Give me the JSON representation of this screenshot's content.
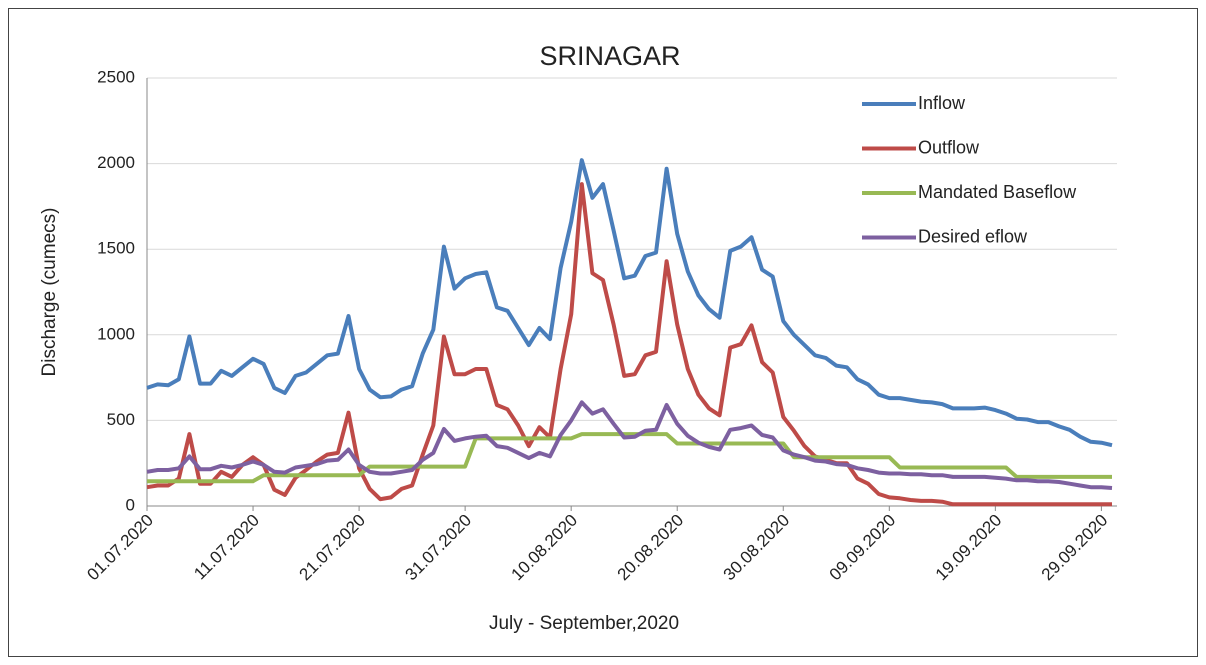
{
  "chart_data": {
    "type": "line",
    "title": "SRINAGAR",
    "x_label": "July - September,2020",
    "y_label": "Discharge (cumecs)",
    "categories": [
      "01.07.2020",
      null,
      null,
      null,
      null,
      null,
      null,
      null,
      null,
      null,
      "11.07.2020",
      null,
      null,
      null,
      null,
      null,
      null,
      null,
      null,
      null,
      "21.07.2020",
      null,
      null,
      null,
      null,
      null,
      null,
      null,
      null,
      null,
      "31.07.2020",
      null,
      null,
      null,
      null,
      null,
      null,
      null,
      null,
      null,
      "10.08.2020",
      null,
      null,
      null,
      null,
      null,
      null,
      null,
      null,
      null,
      "20.08.2020",
      null,
      null,
      null,
      null,
      null,
      null,
      null,
      null,
      null,
      "30.08.2020",
      null,
      null,
      null,
      null,
      null,
      null,
      null,
      null,
      null,
      "09.09.2020",
      null,
      null,
      null,
      null,
      null,
      null,
      null,
      null,
      null,
      "19.09.2020",
      null,
      null,
      null,
      null,
      null,
      null,
      null,
      null,
      null,
      "29.09.2020",
      null
    ],
    "series": [
      {
        "name": "Inflow",
        "color": "#4a7ebb",
        "values": [
          690,
          710,
          705,
          740,
          990,
          715,
          715,
          790,
          760,
          810,
          860,
          830,
          690,
          660,
          760,
          780,
          830,
          880,
          890,
          1110,
          800,
          680,
          635,
          640,
          680,
          700,
          890,
          1030,
          1515,
          1270,
          1330,
          1355,
          1365,
          1160,
          1140,
          1040,
          940,
          1040,
          975,
          1390,
          1660,
          2020,
          1800,
          1880,
          1610,
          1330,
          1345,
          1460,
          1480,
          1970,
          1590,
          1370,
          1230,
          1150,
          1100,
          1490,
          1515,
          1570,
          1380,
          1340,
          1080,
          1000,
          940,
          880,
          865,
          820,
          810,
          740,
          710,
          650,
          630,
          630,
          620,
          610,
          605,
          595,
          570,
          570,
          570,
          575,
          560,
          540,
          510,
          505,
          490,
          490,
          465,
          445,
          405,
          375,
          370,
          355
        ]
      },
      {
        "name": "Outflow",
        "color": "#be4b48",
        "values": [
          110,
          120,
          120,
          160,
          420,
          130,
          130,
          200,
          170,
          240,
          285,
          240,
          95,
          65,
          165,
          210,
          260,
          300,
          310,
          545,
          220,
          100,
          40,
          50,
          100,
          120,
          300,
          470,
          990,
          770,
          770,
          800,
          800,
          590,
          565,
          470,
          350,
          460,
          400,
          800,
          1120,
          1880,
          1360,
          1320,
          1060,
          760,
          770,
          880,
          900,
          1430,
          1060,
          800,
          650,
          570,
          530,
          925,
          945,
          1055,
          840,
          780,
          520,
          440,
          350,
          290,
          270,
          250,
          250,
          160,
          130,
          70,
          50,
          45,
          35,
          30,
          30,
          25,
          10,
          10,
          10,
          10,
          10,
          10,
          10,
          10,
          10,
          10,
          10,
          10,
          10,
          10,
          10,
          10
        ]
      },
      {
        "name": "Mandated Baseflow",
        "color": "#98b954",
        "values": [
          145,
          145,
          145,
          145,
          145,
          145,
          145,
          145,
          145,
          145,
          145,
          180,
          180,
          180,
          180,
          180,
          180,
          180,
          180,
          180,
          180,
          230,
          230,
          230,
          230,
          230,
          230,
          230,
          230,
          230,
          230,
          395,
          395,
          395,
          395,
          395,
          395,
          395,
          395,
          395,
          395,
          420,
          420,
          420,
          420,
          420,
          420,
          420,
          420,
          420,
          365,
          365,
          365,
          365,
          365,
          365,
          365,
          365,
          365,
          365,
          365,
          285,
          285,
          285,
          285,
          285,
          285,
          285,
          285,
          285,
          285,
          225,
          225,
          225,
          225,
          225,
          225,
          225,
          225,
          225,
          225,
          225,
          170,
          170,
          170,
          170,
          170,
          170,
          170,
          170,
          170,
          170
        ]
      },
      {
        "name": "Desired eflow",
        "color": "#7d60a0",
        "values": [
          200,
          210,
          210,
          220,
          290,
          215,
          215,
          235,
          225,
          240,
          260,
          240,
          200,
          195,
          225,
          235,
          245,
          265,
          270,
          330,
          240,
          200,
          190,
          190,
          200,
          210,
          270,
          310,
          450,
          380,
          395,
          405,
          410,
          350,
          340,
          310,
          280,
          310,
          290,
          415,
          500,
          605,
          540,
          565,
          480,
          400,
          405,
          440,
          445,
          590,
          480,
          410,
          370,
          345,
          330,
          445,
          455,
          470,
          415,
          400,
          325,
          300,
          285,
          265,
          260,
          245,
          240,
          220,
          210,
          195,
          190,
          190,
          185,
          185,
          180,
          180,
          170,
          170,
          170,
          170,
          165,
          160,
          150,
          150,
          145,
          145,
          140,
          130,
          120,
          110,
          110,
          105
        ]
      }
    ],
    "ylim": [
      0,
      2500
    ],
    "yticks": [
      0,
      500,
      1000,
      1500,
      2000,
      2500
    ],
    "grid": true,
    "legend": "top-right"
  }
}
